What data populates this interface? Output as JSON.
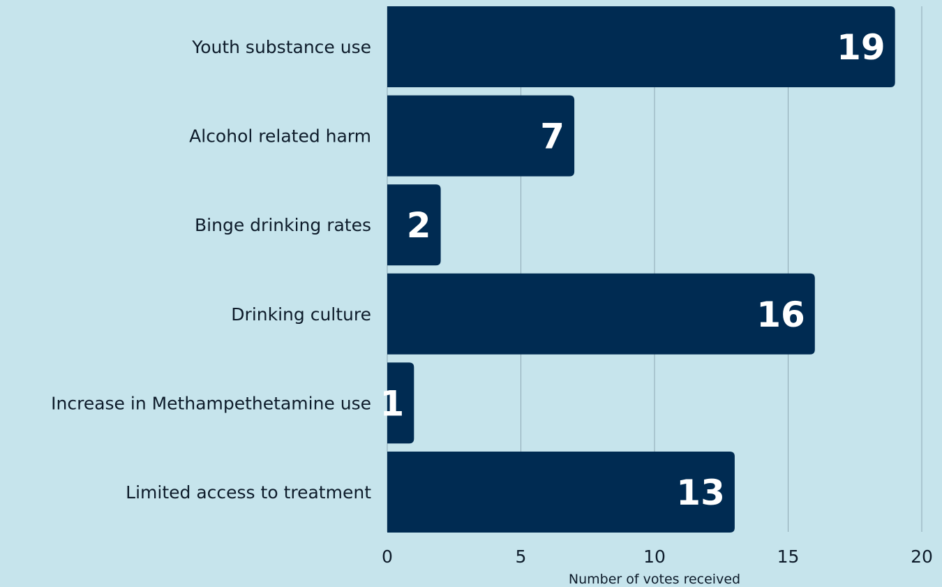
{
  "chart_data": {
    "type": "bar",
    "orientation": "horizontal",
    "categories": [
      "Youth substance use",
      "Alcohol related harm",
      "Binge drinking rates",
      "Drinking culture",
      "Increase in Methampethetamine use",
      "Limited access to treatment"
    ],
    "values": [
      19,
      7,
      2,
      16,
      1,
      13
    ],
    "xlabel": "Number of votes received",
    "ylabel": "",
    "xlim": [
      0,
      20
    ],
    "xticks": [
      "0",
      "5",
      "10",
      "15",
      "20"
    ],
    "grid": "vertical",
    "legend": "none",
    "data_labels": [
      "19",
      "7",
      "2",
      "16",
      "1",
      "13"
    ],
    "colors": {
      "background": "#c6e4ec",
      "bar": "#002b52",
      "grid": "#8fa9b4",
      "value_label": "#ffffff",
      "text": "#0d1b2a"
    }
  }
}
